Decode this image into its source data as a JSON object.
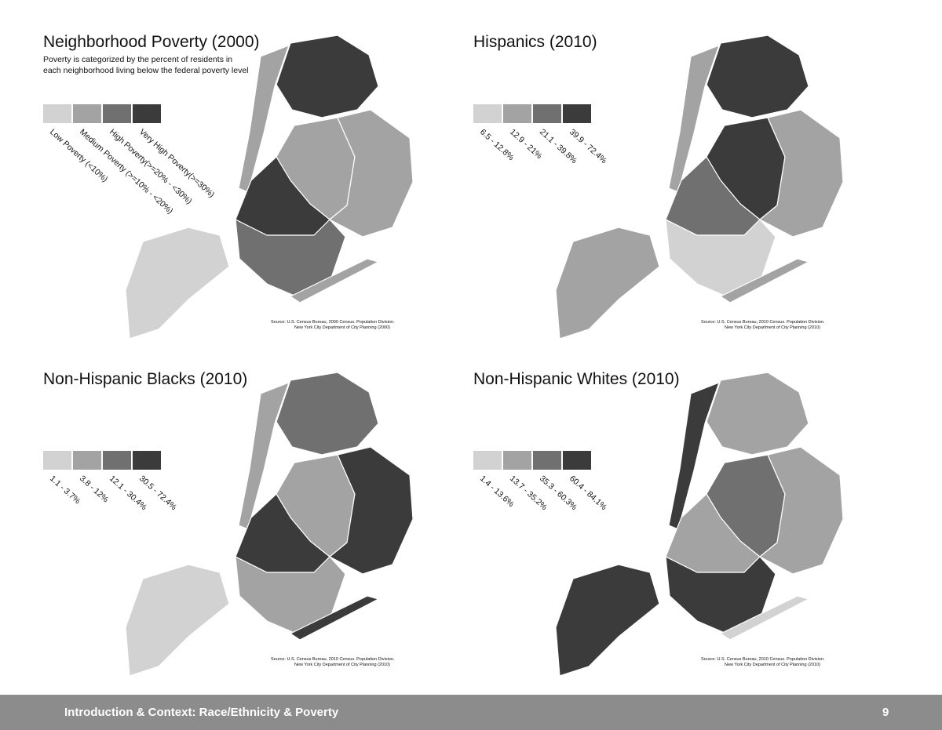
{
  "panels": [
    {
      "title": "Neighborhood Poverty (2000)",
      "subtitle": [
        "Poverty is categorized by the percent of residents in",
        "each neighborhood living below the federal poverty level"
      ],
      "legend": [
        "Low Poverty (<10%)",
        "Medium Poverty (>=10% - <20%)",
        "High Poverty(>=20% - <30%)",
        "Very High Poverty(>=30%)"
      ],
      "source": [
        "Source:  U.S. Census Bureau,  2000 Census. Population Division.",
        "New York City Department of City Planning (2000)"
      ]
    },
    {
      "title": "Hispanics (2010)",
      "legend": [
        "6.5 - 12.8%",
        "12.9 - 21%",
        "21.1 - 39.8%",
        "39.9 - 72.4%"
      ],
      "source": [
        "Source:  U.S. Census Bureau,  2010 Census. Population Division.",
        "New York City Department of City Planning (2010)"
      ]
    },
    {
      "title": "Non-Hispanic Blacks (2010)",
      "legend": [
        "1.1 - 3.7%",
        "3.8 - 12%",
        "12.1 - 30.4%",
        "30.5 - 72.4%"
      ],
      "source": [
        "Source:  U.S. Census Bureau,  2010 Census. Population Division.",
        "New York City Department of City Planning (2010)"
      ]
    },
    {
      "title": "Non-Hispanic Whites (2010)",
      "legend": [
        "1.4 - 13.6%",
        "13.7 - 35.2%",
        "35.3 - 60.3%",
        "60.4 - 84.1%"
      ],
      "source": [
        "Source:  U.S. Census Bureau,  2010 Census. Population Division.",
        "New York City Department of City Planning (2010)"
      ]
    }
  ],
  "footer": {
    "title": "Introduction & Context: Race/Ethnicity & Poverty",
    "page": "9"
  }
}
